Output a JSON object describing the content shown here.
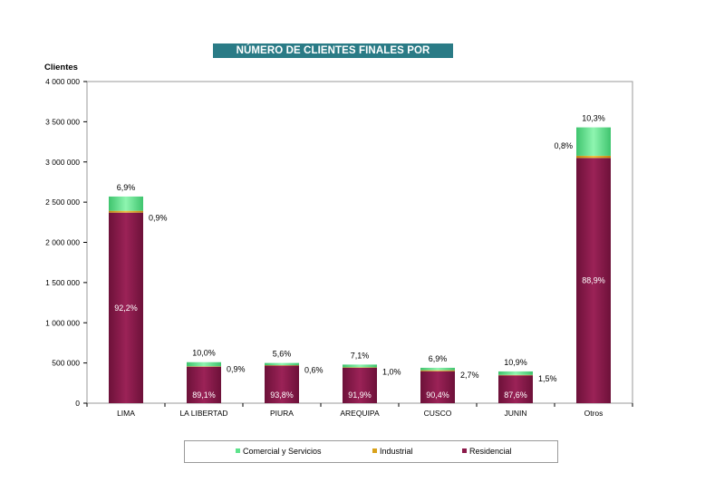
{
  "chart_data": {
    "type": "bar",
    "stacked": true,
    "title": "NÚMERO DE CLIENTES FINALES POR SECTORES",
    "ylabel": "Clientes",
    "xlabel": "",
    "ylim": [
      0,
      4000000
    ],
    "yticks": [
      "0",
      "500 000",
      "1 000 000",
      "1 500 000",
      "2 000 000",
      "2 500 000",
      "3 000 000",
      "3 500 000",
      "4 000 000"
    ],
    "ytick_values": [
      0,
      500000,
      1000000,
      1500000,
      2000000,
      2500000,
      3000000,
      3500000,
      4000000
    ],
    "categories": [
      "LIMA",
      "LA LIBERTAD",
      "PIURA",
      "AREQUIPA",
      "CUSCO",
      "JUNIN",
      "Otros"
    ],
    "totals": [
      2570000,
      510000,
      500000,
      480000,
      440000,
      395000,
      3430000
    ],
    "series": [
      {
        "name": "Residencial",
        "color": "#8b1a4a",
        "values": [
          2369540,
          454410,
          469000,
          441120,
          397760,
          346020,
          3049270
        ],
        "labels": [
          "92,2%",
          "89,1%",
          "93,8%",
          "91,9%",
          "90,4%",
          "87,6%",
          "88,9%"
        ]
      },
      {
        "name": "Industrial",
        "color": "#d9a21b",
        "values": [
          23130,
          4590,
          3000,
          4800,
          11880,
          5925,
          27440
        ],
        "labels": [
          "0,9%",
          "0,9%",
          "0,6%",
          "1,0%",
          "2,7%",
          "1,5%",
          "0,8%"
        ]
      },
      {
        "name": "Comercial y Servicios",
        "color": "#5ee38c",
        "values": [
          177330,
          51000,
          28000,
          34080,
          30360,
          43055,
          353290
        ],
        "labels": [
          "6,9%",
          "10,0%",
          "5,6%",
          "7,1%",
          "6,9%",
          "10,9%",
          "10,3%"
        ]
      }
    ],
    "legend_order": [
      "Comercial y Servicios",
      "Industrial",
      "Residencial"
    ],
    "legend_position": "bottom",
    "grid": false
  }
}
